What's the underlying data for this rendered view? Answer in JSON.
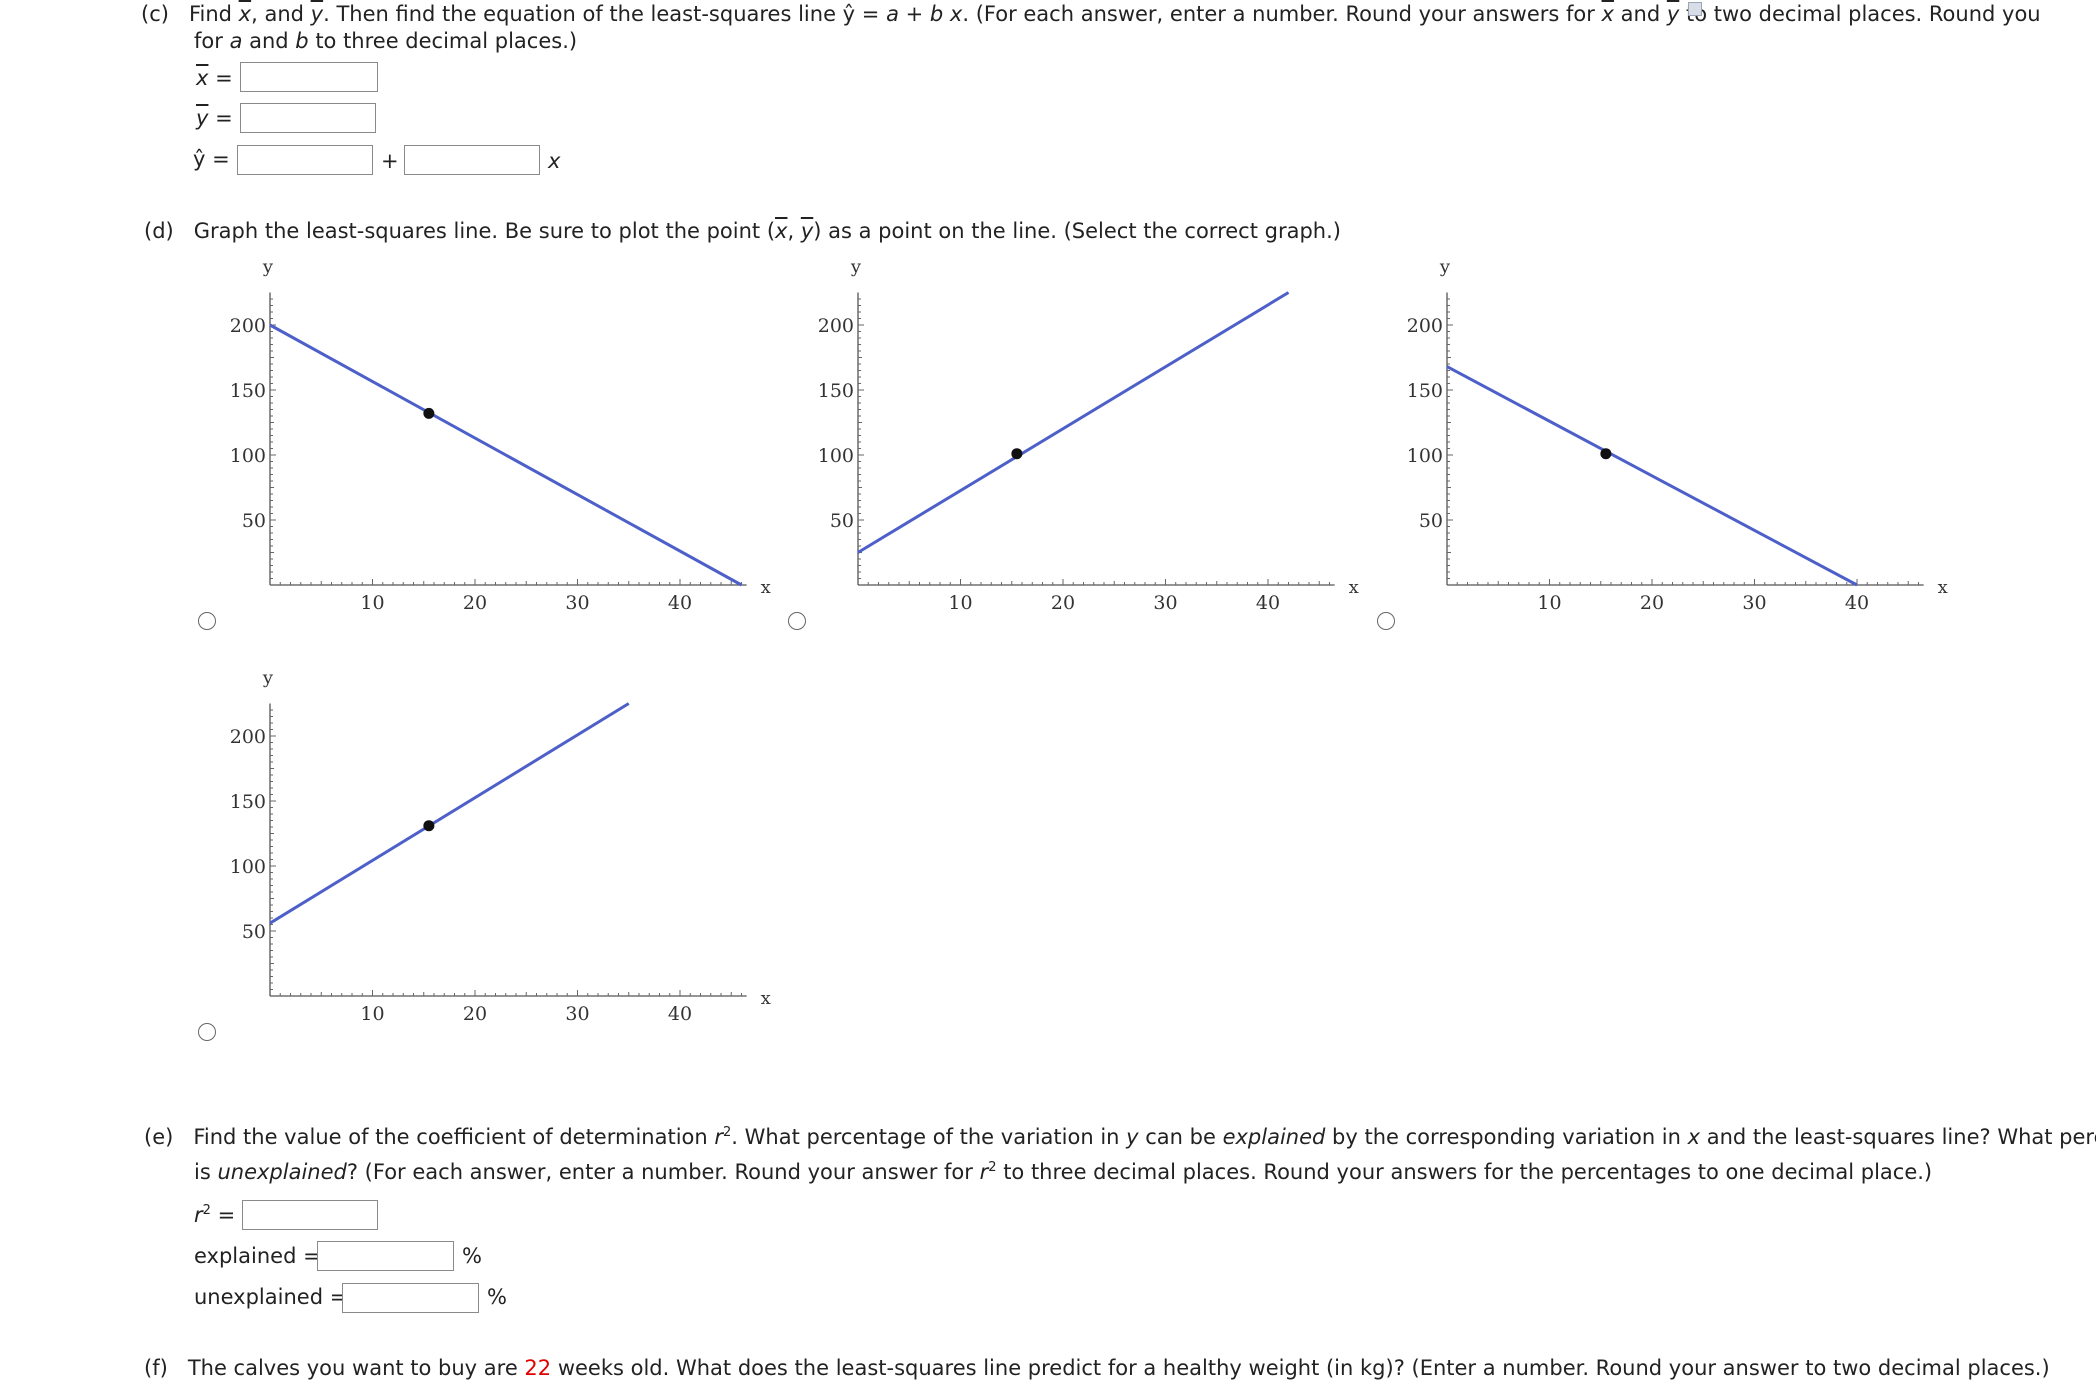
{
  "part_c": {
    "label": "(c)",
    "line1_a": "Find ",
    "xbar": "x",
    "line1_b": ", and ",
    "ybar": "y",
    "line1_c": ". Then find the equation of the least-squares line ",
    "yhat": "ŷ",
    "line1_d": " = ",
    "a": "a",
    "plus": " + ",
    "b": "b",
    "xvar": " x",
    "line1_e": ". (For each answer, enter a number. Round your answers for ",
    "xbar2": "x",
    "and": " and ",
    "ybar2": "y",
    "line1_f": " to two decimal places. Round your answers",
    "line2_a": "for ",
    "line2_b": " and ",
    "line2_c": " to three decimal places.)",
    "xbar_label": "x",
    "ybar_label": "y",
    "yhat_label": "ŷ",
    "equals": "=",
    "plus_sign": "+",
    "x_suffix": "x"
  },
  "part_d": {
    "label": "(d)",
    "text_a": "Graph the least-squares line. Be sure to plot the point (",
    "xbar": "x",
    "comma": ", ",
    "ybar": "y",
    "text_b": ") as a point on the line. (Select the correct graph.)"
  },
  "chart_data": [
    {
      "type": "line",
      "option": 1,
      "xlabel": "x",
      "ylabel": "y",
      "xlim": [
        0,
        46
      ],
      "ylim": [
        0,
        200
      ],
      "x_ticks": [
        10,
        20,
        30,
        40
      ],
      "y_ticks": [
        50,
        100,
        150,
        200
      ],
      "series": [
        {
          "x": [
            0,
            46
          ],
          "y": [
            200,
            0
          ]
        }
      ],
      "point": {
        "x": 15.5,
        "y": 132
      }
    },
    {
      "type": "line",
      "option": 2,
      "xlabel": "x",
      "ylabel": "y",
      "xlim": [
        0,
        42
      ],
      "ylim": [
        0,
        200
      ],
      "x_ticks": [
        10,
        20,
        30,
        40
      ],
      "y_ticks": [
        50,
        100,
        150,
        200
      ],
      "series": [
        {
          "x": [
            0,
            42
          ],
          "y": [
            25,
            225
          ]
        }
      ],
      "point": {
        "x": 15.5,
        "y": 101
      }
    },
    {
      "type": "line",
      "option": 3,
      "xlabel": "x",
      "ylabel": "y",
      "xlim": [
        0,
        40
      ],
      "ylim": [
        0,
        200
      ],
      "x_ticks": [
        10,
        20,
        30,
        40
      ],
      "y_ticks": [
        50,
        100,
        150,
        200
      ],
      "series": [
        {
          "x": [
            0,
            40
          ],
          "y": [
            168,
            0
          ]
        }
      ],
      "point": {
        "x": 15.5,
        "y": 101
      }
    },
    {
      "type": "line",
      "option": 4,
      "xlabel": "x",
      "ylabel": "y",
      "xlim": [
        0,
        35
      ],
      "ylim": [
        0,
        200
      ],
      "x_ticks": [
        10,
        20,
        30,
        40
      ],
      "y_ticks": [
        50,
        100,
        150,
        200
      ],
      "series": [
        {
          "x": [
            0,
            35
          ],
          "y": [
            56,
            225
          ]
        }
      ],
      "point": {
        "x": 15.5,
        "y": 131
      }
    }
  ],
  "part_e": {
    "label": "(e)",
    "line1_a": "Find the value of the coefficient of determination ",
    "r": "r",
    "sq": "2",
    "line1_b": ". What percentage of the variation in ",
    "y": "y",
    "line1_c": " can be ",
    "explained_word": "explained",
    "line1_d": " by the corresponding variation in ",
    "x": "x",
    "line1_e": " and the least-squares line? What percentage",
    "line2_a": "is ",
    "unexplained_word": "unexplained",
    "line2_b": "? (For each answer, enter a number. Round your answer for ",
    "line2_c": " to three decimal places. Round your answers for the percentages to one decimal place.)",
    "r2_label_r": "r",
    "r2_label_sq": "2",
    "equals": "=",
    "explained_label": "explained",
    "unexplained_label": "unexplained",
    "percent": "%"
  },
  "part_f": {
    "label": "(f)",
    "text_a": "The calves you want to buy are ",
    "weeks": "22",
    "text_b": " weeks old. What does the least-squares line predict for a healthy weight (in kg)? (Enter a number. Round your answer to two decimal places.)"
  }
}
